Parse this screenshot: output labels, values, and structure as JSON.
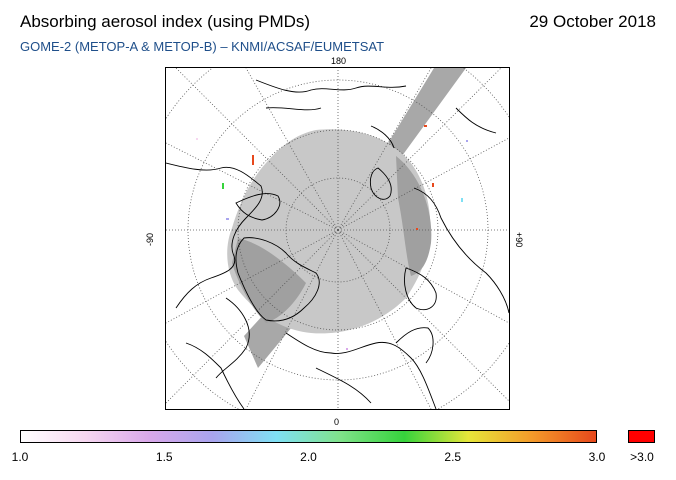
{
  "header": {
    "title": "Absorbing aerosol index (using PMDs)",
    "date": "29 October 2018",
    "subtitle": "GOME-2 (METOP-A & METOP-B)  –  KNMI/ACSAF/EUMETSAT"
  },
  "map": {
    "projection": "polar stereographic (north pole)",
    "lon_labels": {
      "top": "180",
      "bottom": "0",
      "left": "-90",
      "right": "+90"
    },
    "colors": {
      "no_data_gray": "#c8c8c8",
      "swath_gray": "#a8a8a8",
      "coastline": "#000000",
      "grid": "#555555"
    }
  },
  "colorbar": {
    "stops": [
      "#ffffff",
      "#f6d7f0",
      "#d9a8ea",
      "#a9a4ee",
      "#7fe0f4",
      "#7fe28a",
      "#36d33c",
      "#e6e63a",
      "#f39a2a",
      "#e7481c"
    ],
    "over_color": "#ff0000",
    "ticks": [
      "1.0",
      "1.5",
      "2.0",
      "2.5",
      "3.0"
    ],
    "over_label": ">3.0",
    "min": 1.0,
    "max": 3.0
  }
}
